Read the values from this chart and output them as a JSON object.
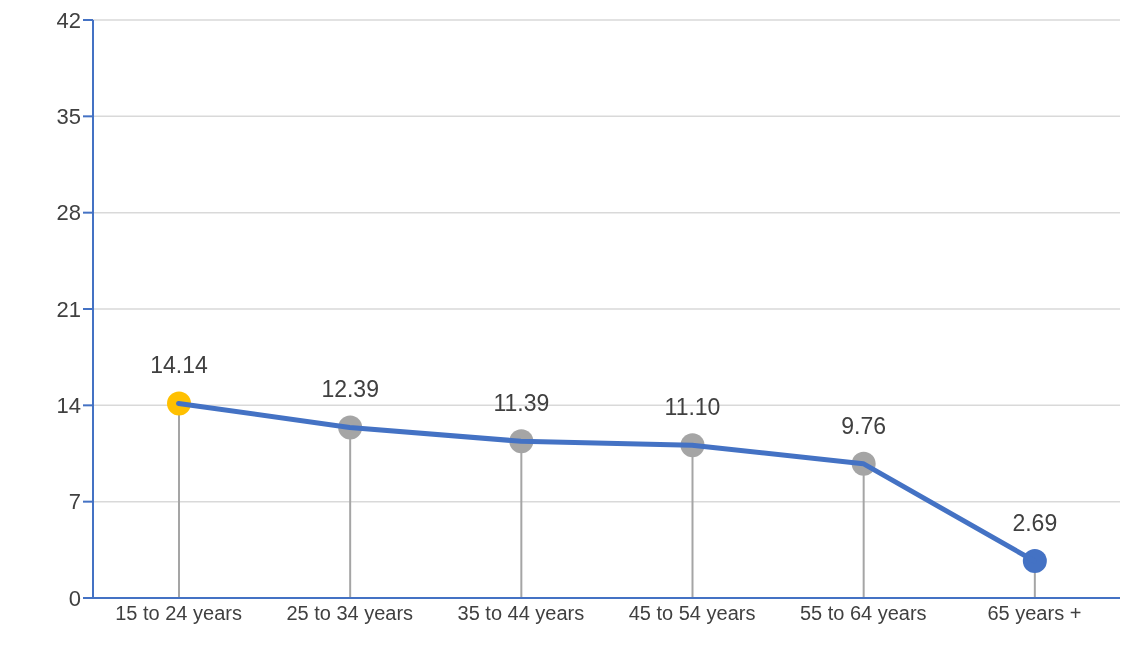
{
  "chart_data": {
    "type": "line",
    "categories": [
      "15 to 24 years",
      "25 to 34 years",
      "35 to 44 years",
      "45 to 54 years",
      "55 to 64 years",
      "65 years +"
    ],
    "series": [
      {
        "type": "line",
        "color": "#4472c4",
        "values": [
          14.14,
          12.39,
          11.39,
          11.1,
          9.76,
          2.69
        ]
      },
      {
        "type": "lollipop",
        "color": "#a5a5a5",
        "colors": [
          "#ffc000",
          "#a5a5a5",
          "#a5a5a5",
          "#a5a5a5",
          "#a5a5a5",
          "#4472c4"
        ],
        "values": [
          14.14,
          12.39,
          11.39,
          11.1,
          9.76,
          2.69
        ],
        "value_labels": [
          "14.14",
          "12.39",
          "11.39",
          "11.10",
          "9.76",
          "2.69"
        ]
      }
    ],
    "ylim": [
      0,
      42
    ],
    "yticks": [
      0,
      7,
      14,
      21,
      28,
      35,
      42
    ],
    "grid": "y"
  }
}
